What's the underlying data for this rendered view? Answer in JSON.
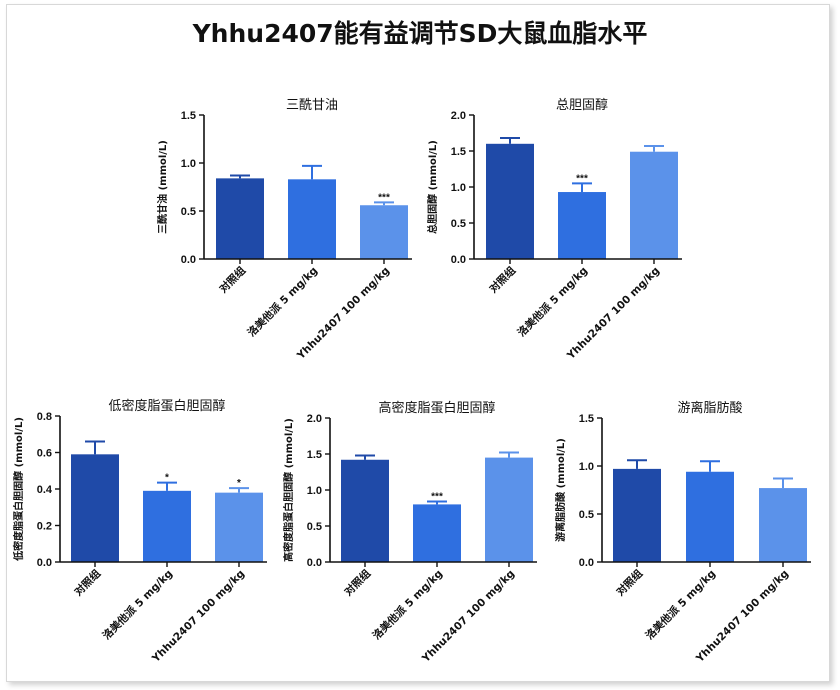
{
  "title": "Yhhu2407能有益调节SD大鼠血脂水平",
  "categories": [
    "对照组",
    "洛美他派 5 mg/kg",
    "Yhhu2407 100 mg/kg"
  ],
  "colors": [
    "#1f4aa8",
    "#2f6fe0",
    "#5b92ea"
  ],
  "chart_data": [
    {
      "type": "bar",
      "title": "三酰甘油",
      "ylabel": "三酰甘油 (mmol/L)",
      "ylim": [
        0,
        1.5
      ],
      "yticks": [
        "0.0",
        "0.5",
        "1.0",
        "1.5"
      ],
      "values": [
        0.84,
        0.83,
        0.56
      ],
      "errors": [
        0.03,
        0.14,
        0.03
      ],
      "significance": [
        "",
        "",
        "***"
      ]
    },
    {
      "type": "bar",
      "title": "总胆固醇",
      "ylabel": "总胆固醇 (mmol/L)",
      "ylim": [
        0,
        2.0
      ],
      "yticks": [
        "0.0",
        "0.5",
        "1.0",
        "1.5",
        "2.0"
      ],
      "values": [
        1.6,
        0.93,
        1.49
      ],
      "errors": [
        0.08,
        0.12,
        0.08
      ],
      "significance": [
        "",
        "***",
        ""
      ]
    },
    {
      "type": "bar",
      "title": "低密度脂蛋白胆固醇",
      "ylabel": "低密度脂蛋白胆固醇 (mmol/L)",
      "ylim": [
        0,
        0.8
      ],
      "yticks": [
        "0.0",
        "0.2",
        "0.4",
        "0.6",
        "0.8"
      ],
      "values": [
        0.59,
        0.39,
        0.38
      ],
      "errors": [
        0.07,
        0.045,
        0.025
      ],
      "significance": [
        "",
        "*",
        "*"
      ]
    },
    {
      "type": "bar",
      "title": "高密度脂蛋白胆固醇",
      "ylabel": "高密度脂蛋白胆固醇 (mmol/L)",
      "ylim": [
        0,
        2.0
      ],
      "yticks": [
        "0.0",
        "0.5",
        "1.0",
        "1.5",
        "2.0"
      ],
      "values": [
        1.42,
        0.8,
        1.45
      ],
      "errors": [
        0.06,
        0.04,
        0.07
      ],
      "significance": [
        "",
        "***",
        ""
      ]
    },
    {
      "type": "bar",
      "title": "游离脂肪酸",
      "ylabel": "游离脂肪酸 (mmol/L)",
      "ylim": [
        0,
        1.5
      ],
      "yticks": [
        "0.0",
        "0.5",
        "1.0",
        "1.5"
      ],
      "values": [
        0.97,
        0.94,
        0.77
      ],
      "errors": [
        0.09,
        0.11,
        0.1
      ],
      "significance": [
        "",
        "",
        ""
      ]
    }
  ]
}
